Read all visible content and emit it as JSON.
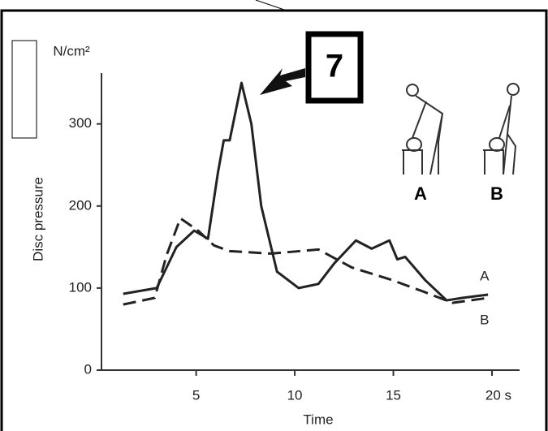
{
  "chart_data": {
    "type": "line",
    "annotation": "7",
    "y_label": "Disc pressure",
    "y_unit": "N/cm²",
    "x_label": "Time",
    "xlim": [
      0.2,
      21.4
    ],
    "ylim": [
      0,
      362
    ],
    "xticks": [
      5,
      10,
      15,
      {
        "value": 20,
        "label": "20 s"
      }
    ],
    "yticks": [
      0,
      100,
      200,
      300
    ],
    "figure_labels": [
      "A",
      "B"
    ],
    "series": [
      {
        "name": "A",
        "color": "#222222",
        "dashed": false,
        "x": [
          1.3,
          3,
          4,
          4.9,
          5.6,
          6.1,
          6.4,
          6.7,
          7.3,
          7.8,
          8.3,
          9.1,
          10.2,
          11.2,
          12,
          13.1,
          13.9,
          14.8,
          15.2,
          15.6,
          16.6,
          17.7,
          18.5,
          19.8
        ],
        "values": [
          93,
          100,
          150,
          170,
          160,
          240,
          280,
          280,
          350,
          300,
          200,
          120,
          100,
          105,
          130,
          158,
          148,
          158,
          135,
          138,
          110,
          85,
          88,
          92
        ]
      },
      {
        "name": "B",
        "color": "#222222",
        "dashed": true,
        "x": [
          1.3,
          2.9,
          3.5,
          4.2,
          5.1,
          5.9,
          6.7,
          8.8,
          11.2,
          12.9,
          14.9,
          16.6,
          18,
          19.8
        ],
        "values": [
          80,
          88,
          140,
          185,
          170,
          152,
          145,
          142,
          147,
          125,
          110,
          95,
          82,
          88
        ]
      }
    ]
  }
}
